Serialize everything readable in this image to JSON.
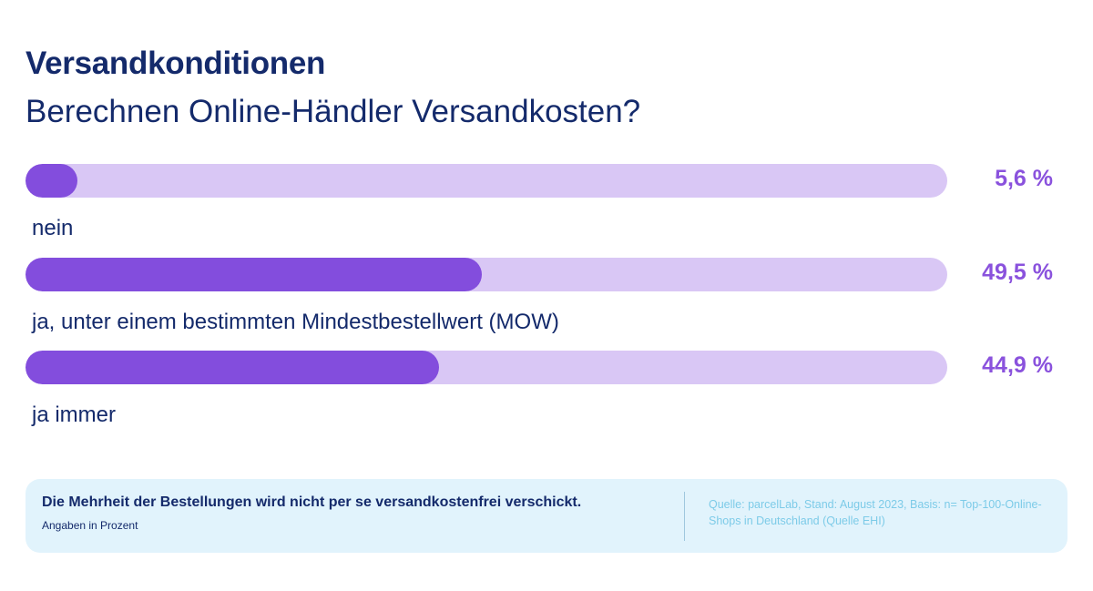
{
  "header": {
    "title": "Versandkonditionen",
    "subtitle": "Berechnen Online-Händler Versandkosten?"
  },
  "chart_data": {
    "type": "bar",
    "orientation": "horizontal",
    "categories": [
      "nein",
      "ja, unter einem bestimmten Mindestbestellwert (MOW)",
      "ja immer"
    ],
    "values": [
      5.6,
      49.5,
      44.9
    ],
    "value_labels": [
      "5,6 %",
      "49,5 %",
      "44,9 %"
    ],
    "xlim": [
      0,
      100
    ],
    "colors": {
      "fill": "#834ddd",
      "track": "#d9c7f5",
      "value_text": "#8a52dd",
      "label_text": "#142a6b"
    }
  },
  "footer": {
    "note": "Die Mehrheit der Bestellungen wird nicht per se versandkostenfrei verschickt.",
    "unit": "Angaben in Prozent",
    "source": "Quelle: parcelLab, Stand: August 2023, Basis: n= Top-100-Online-Shops in Deutschland (Quelle EHI)"
  }
}
